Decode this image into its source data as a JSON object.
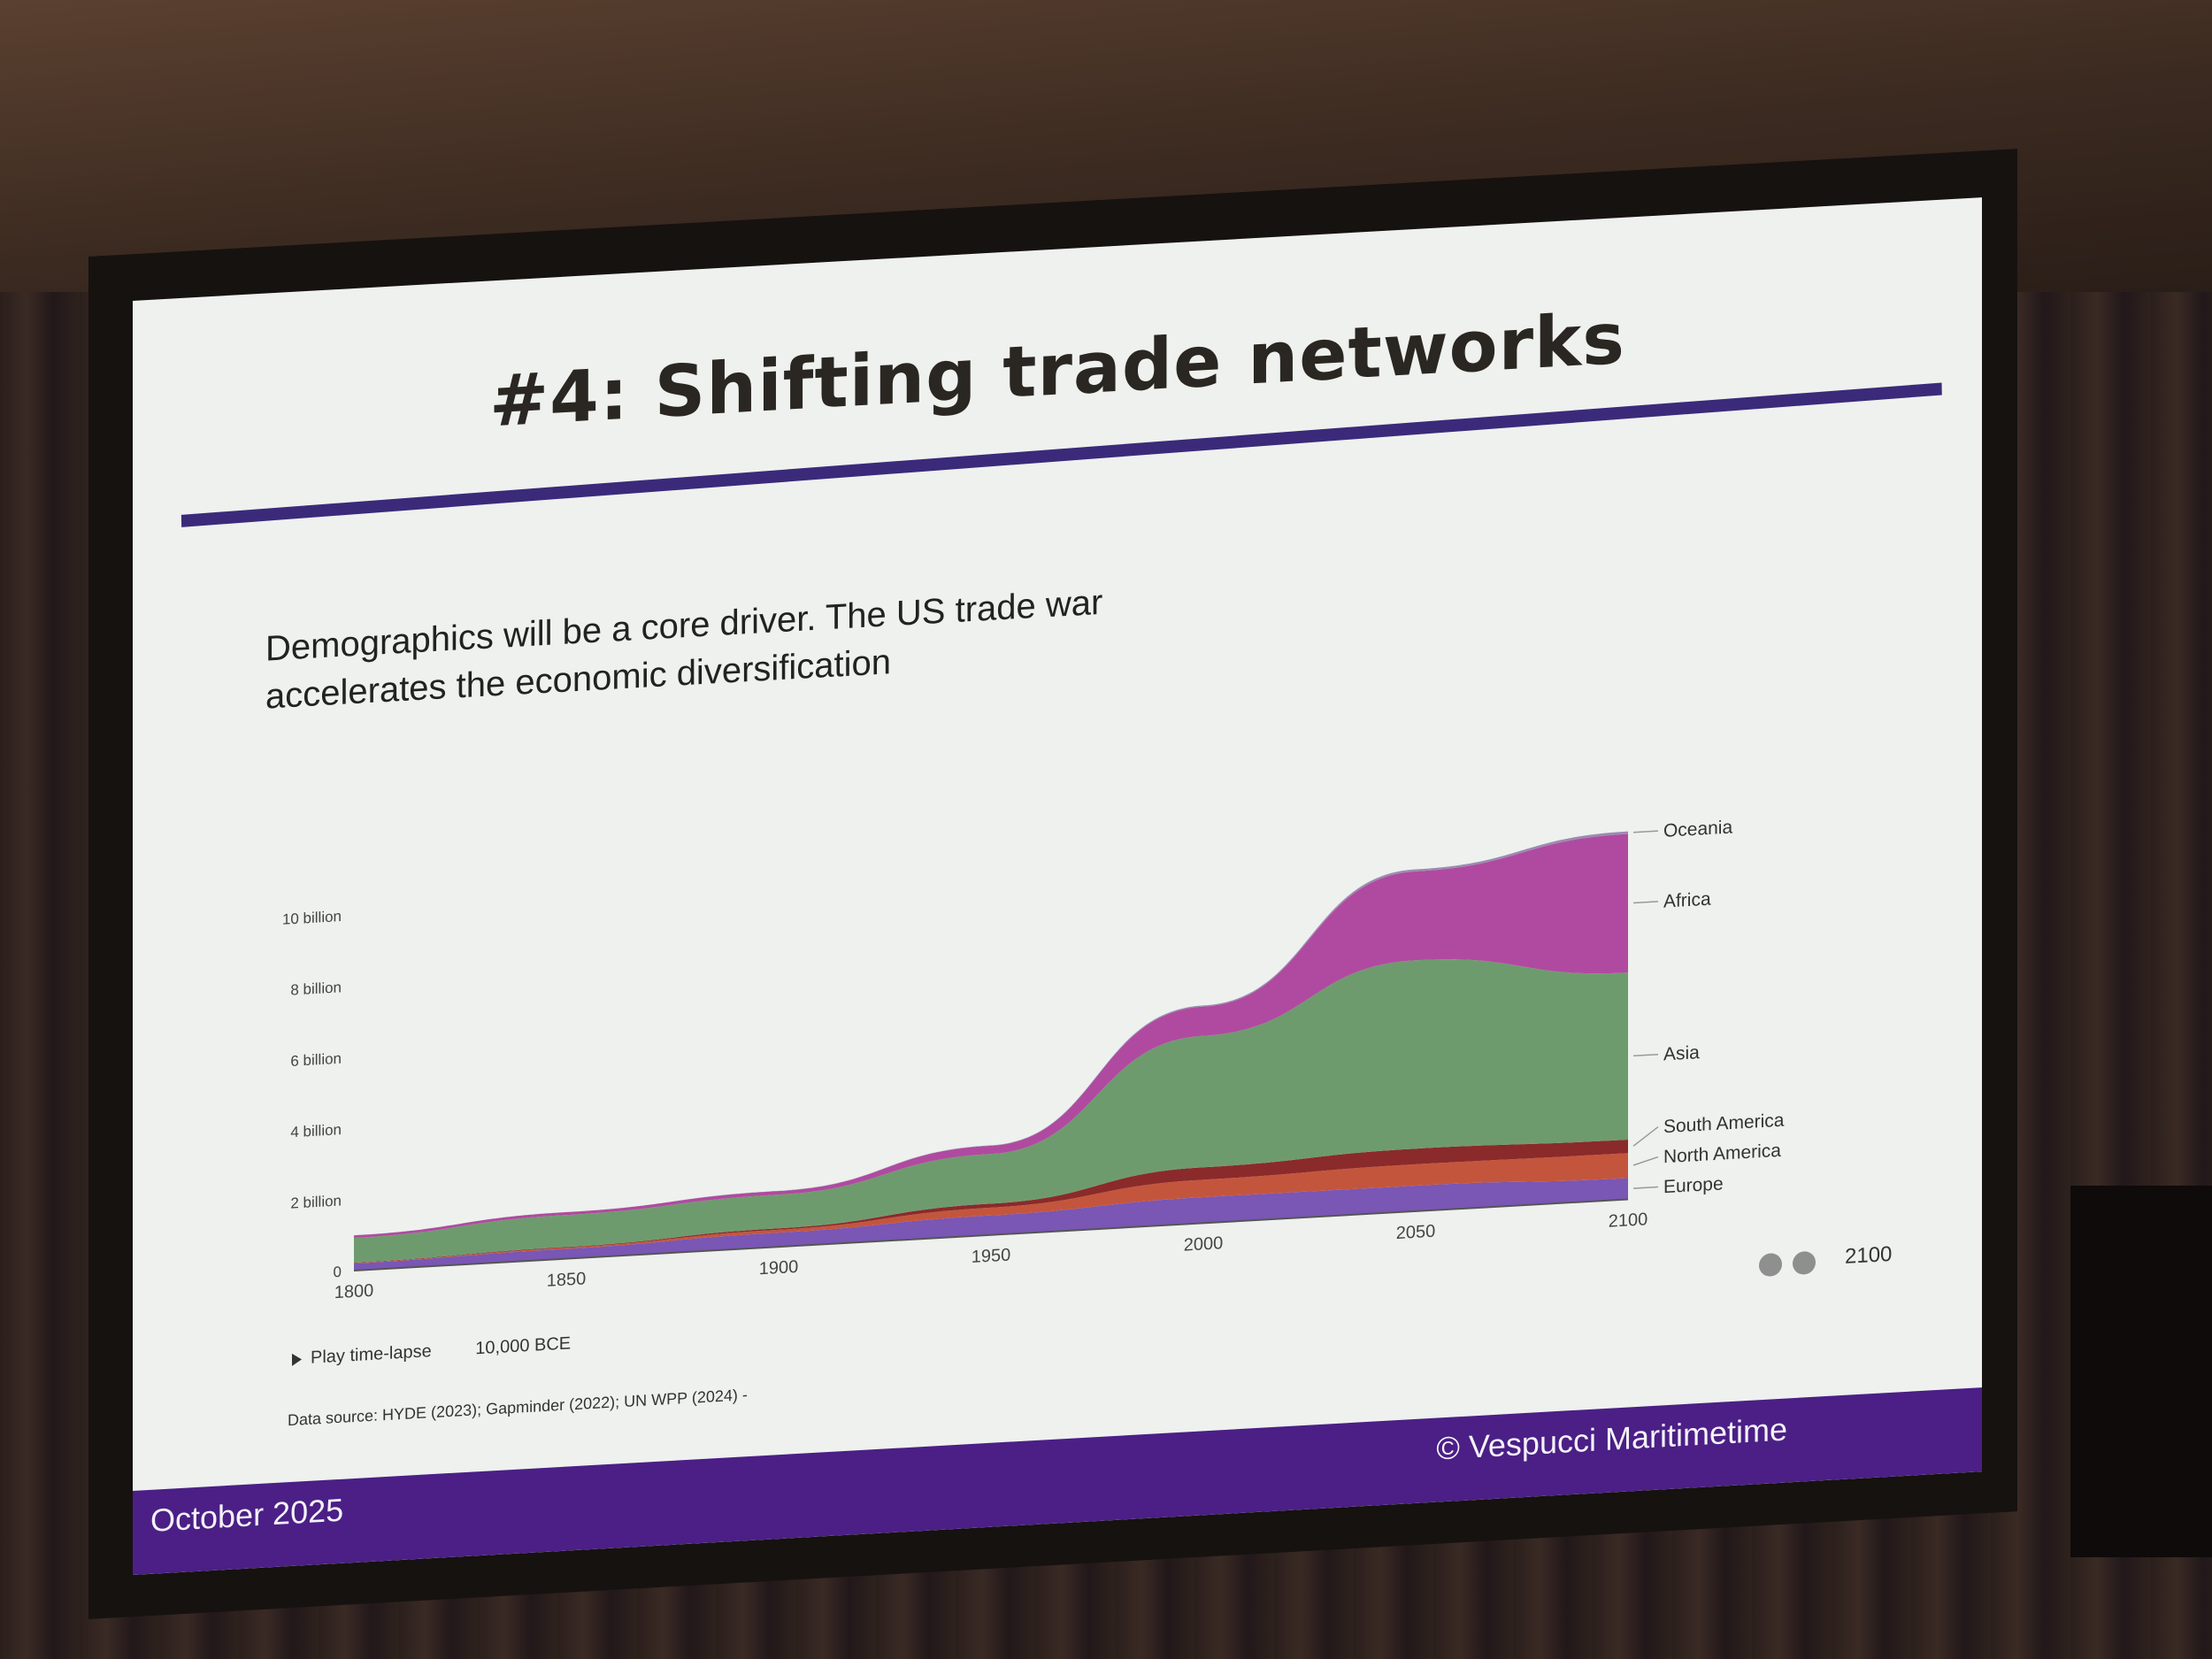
{
  "slide": {
    "title": "#4: Shifting trade networks",
    "subtitle_line1": "Demographics will be a core driver. The US trade war",
    "subtitle_line2": "accelerates the economic diversification",
    "footer_date": "October 2025",
    "footer_copy": "© Vespucci Maritimetime",
    "source": "Data source: HYDE (2023); Gapminder (2022); UN WPP (2024) -"
  },
  "controls": {
    "play_label": "Play time-lapse",
    "start_label": "10,000 BCE",
    "end_label": "2100"
  },
  "chart_data": {
    "type": "area",
    "stacked": true,
    "x": [
      1800,
      1850,
      1900,
      1950,
      2000,
      2050,
      2100
    ],
    "x_tick_labels": [
      "1800",
      "1850",
      "1900",
      "1950",
      "2000",
      "2050",
      "2100"
    ],
    "y_tick_values": [
      0,
      2,
      4,
      6,
      8,
      10
    ],
    "y_tick_labels": [
      "0",
      "2 billion",
      "4 billion",
      "6 billion",
      "8 billion",
      "10 billion"
    ],
    "ylim": [
      0,
      11.2
    ],
    "legend_placement": "right, inline labels",
    "series": [
      {
        "name": "Europe",
        "color": "#7a56b5",
        "values": [
          0.2,
          0.28,
          0.4,
          0.55,
          0.73,
          0.72,
          0.6
        ]
      },
      {
        "name": "North America",
        "color": "#c4553d",
        "values": [
          0.01,
          0.03,
          0.08,
          0.22,
          0.49,
          0.6,
          0.7
        ]
      },
      {
        "name": "South America",
        "color": "#8b2a2a",
        "values": [
          0.01,
          0.02,
          0.04,
          0.11,
          0.35,
          0.44,
          0.38
        ]
      },
      {
        "name": "Asia",
        "color": "#6e9b6e",
        "values": [
          0.7,
          0.9,
          0.95,
          1.4,
          3.7,
          5.3,
          4.7
        ]
      },
      {
        "name": "Africa",
        "color": "#b04aa0",
        "values": [
          0.07,
          0.08,
          0.1,
          0.23,
          0.82,
          2.5,
          3.9
        ]
      },
      {
        "name": "Oceania",
        "color": "#9a8bb0",
        "values": [
          0.002,
          0.002,
          0.006,
          0.013,
          0.031,
          0.057,
          0.07
        ]
      }
    ]
  }
}
